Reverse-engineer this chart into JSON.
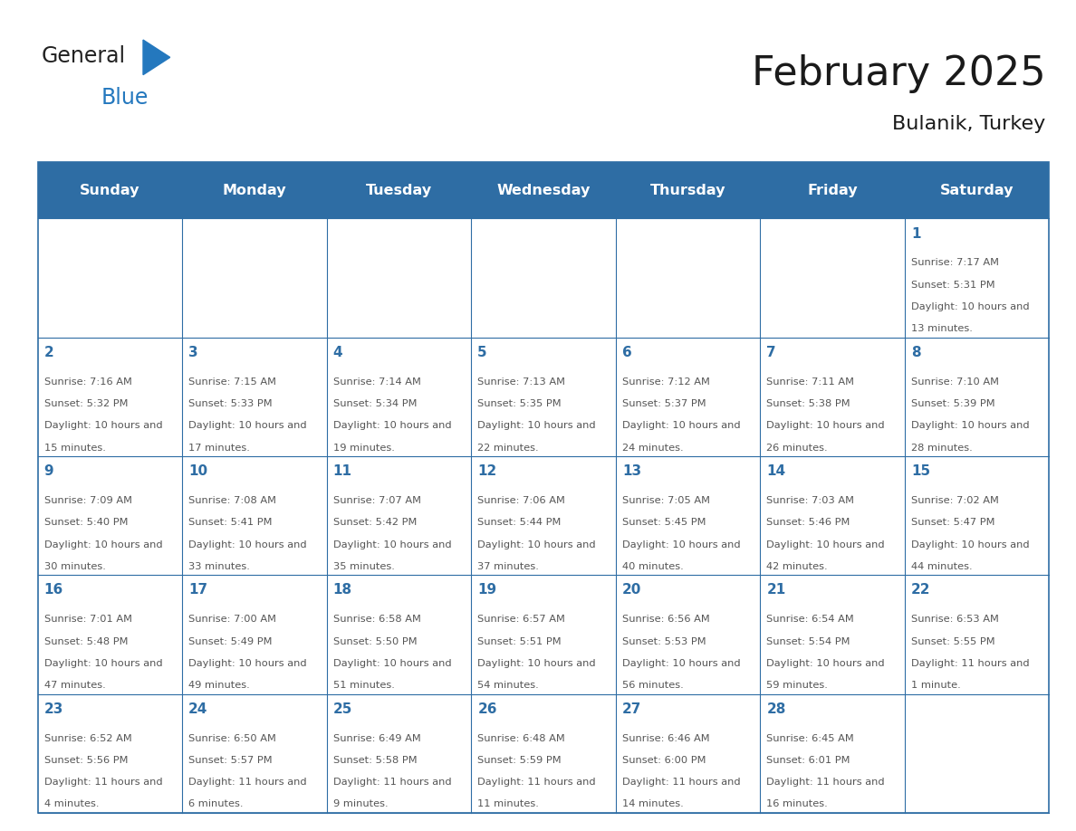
{
  "title": "February 2025",
  "subtitle": "Bulanik, Turkey",
  "days_of_week": [
    "Sunday",
    "Monday",
    "Tuesday",
    "Wednesday",
    "Thursday",
    "Friday",
    "Saturday"
  ],
  "header_bg": "#2E6DA4",
  "header_text_color": "#FFFFFF",
  "cell_bg": "#FFFFFF",
  "border_color": "#2E6DA4",
  "day_number_color": "#2E6DA4",
  "text_color": "#555555",
  "title_color": "#1a1a1a",
  "logo_blue_color": "#2478BE",
  "calendar_data": [
    {
      "day": 1,
      "col": 6,
      "row": 0,
      "sunrise": "7:17 AM",
      "sunset": "5:31 PM",
      "daylight_h": "10 hours",
      "daylight_m": "13 minutes."
    },
    {
      "day": 2,
      "col": 0,
      "row": 1,
      "sunrise": "7:16 AM",
      "sunset": "5:32 PM",
      "daylight_h": "10 hours",
      "daylight_m": "15 minutes."
    },
    {
      "day": 3,
      "col": 1,
      "row": 1,
      "sunrise": "7:15 AM",
      "sunset": "5:33 PM",
      "daylight_h": "10 hours",
      "daylight_m": "17 minutes."
    },
    {
      "day": 4,
      "col": 2,
      "row": 1,
      "sunrise": "7:14 AM",
      "sunset": "5:34 PM",
      "daylight_h": "10 hours",
      "daylight_m": "19 minutes."
    },
    {
      "day": 5,
      "col": 3,
      "row": 1,
      "sunrise": "7:13 AM",
      "sunset": "5:35 PM",
      "daylight_h": "10 hours",
      "daylight_m": "22 minutes."
    },
    {
      "day": 6,
      "col": 4,
      "row": 1,
      "sunrise": "7:12 AM",
      "sunset": "5:37 PM",
      "daylight_h": "10 hours",
      "daylight_m": "24 minutes."
    },
    {
      "day": 7,
      "col": 5,
      "row": 1,
      "sunrise": "7:11 AM",
      "sunset": "5:38 PM",
      "daylight_h": "10 hours",
      "daylight_m": "26 minutes."
    },
    {
      "day": 8,
      "col": 6,
      "row": 1,
      "sunrise": "7:10 AM",
      "sunset": "5:39 PM",
      "daylight_h": "10 hours",
      "daylight_m": "28 minutes."
    },
    {
      "day": 9,
      "col": 0,
      "row": 2,
      "sunrise": "7:09 AM",
      "sunset": "5:40 PM",
      "daylight_h": "10 hours",
      "daylight_m": "30 minutes."
    },
    {
      "day": 10,
      "col": 1,
      "row": 2,
      "sunrise": "7:08 AM",
      "sunset": "5:41 PM",
      "daylight_h": "10 hours",
      "daylight_m": "33 minutes."
    },
    {
      "day": 11,
      "col": 2,
      "row": 2,
      "sunrise": "7:07 AM",
      "sunset": "5:42 PM",
      "daylight_h": "10 hours",
      "daylight_m": "35 minutes."
    },
    {
      "day": 12,
      "col": 3,
      "row": 2,
      "sunrise": "7:06 AM",
      "sunset": "5:44 PM",
      "daylight_h": "10 hours",
      "daylight_m": "37 minutes."
    },
    {
      "day": 13,
      "col": 4,
      "row": 2,
      "sunrise": "7:05 AM",
      "sunset": "5:45 PM",
      "daylight_h": "10 hours",
      "daylight_m": "40 minutes."
    },
    {
      "day": 14,
      "col": 5,
      "row": 2,
      "sunrise": "7:03 AM",
      "sunset": "5:46 PM",
      "daylight_h": "10 hours",
      "daylight_m": "42 minutes."
    },
    {
      "day": 15,
      "col": 6,
      "row": 2,
      "sunrise": "7:02 AM",
      "sunset": "5:47 PM",
      "daylight_h": "10 hours",
      "daylight_m": "44 minutes."
    },
    {
      "day": 16,
      "col": 0,
      "row": 3,
      "sunrise": "7:01 AM",
      "sunset": "5:48 PM",
      "daylight_h": "10 hours",
      "daylight_m": "47 minutes."
    },
    {
      "day": 17,
      "col": 1,
      "row": 3,
      "sunrise": "7:00 AM",
      "sunset": "5:49 PM",
      "daylight_h": "10 hours",
      "daylight_m": "49 minutes."
    },
    {
      "day": 18,
      "col": 2,
      "row": 3,
      "sunrise": "6:58 AM",
      "sunset": "5:50 PM",
      "daylight_h": "10 hours",
      "daylight_m": "51 minutes."
    },
    {
      "day": 19,
      "col": 3,
      "row": 3,
      "sunrise": "6:57 AM",
      "sunset": "5:51 PM",
      "daylight_h": "10 hours",
      "daylight_m": "54 minutes."
    },
    {
      "day": 20,
      "col": 4,
      "row": 3,
      "sunrise": "6:56 AM",
      "sunset": "5:53 PM",
      "daylight_h": "10 hours",
      "daylight_m": "56 minutes."
    },
    {
      "day": 21,
      "col": 5,
      "row": 3,
      "sunrise": "6:54 AM",
      "sunset": "5:54 PM",
      "daylight_h": "10 hours",
      "daylight_m": "59 minutes."
    },
    {
      "day": 22,
      "col": 6,
      "row": 3,
      "sunrise": "6:53 AM",
      "sunset": "5:55 PM",
      "daylight_h": "11 hours",
      "daylight_m": "1 minute."
    },
    {
      "day": 23,
      "col": 0,
      "row": 4,
      "sunrise": "6:52 AM",
      "sunset": "5:56 PM",
      "daylight_h": "11 hours",
      "daylight_m": "4 minutes."
    },
    {
      "day": 24,
      "col": 1,
      "row": 4,
      "sunrise": "6:50 AM",
      "sunset": "5:57 PM",
      "daylight_h": "11 hours",
      "daylight_m": "6 minutes."
    },
    {
      "day": 25,
      "col": 2,
      "row": 4,
      "sunrise": "6:49 AM",
      "sunset": "5:58 PM",
      "daylight_h": "11 hours",
      "daylight_m": "9 minutes."
    },
    {
      "day": 26,
      "col": 3,
      "row": 4,
      "sunrise": "6:48 AM",
      "sunset": "5:59 PM",
      "daylight_h": "11 hours",
      "daylight_m": "11 minutes."
    },
    {
      "day": 27,
      "col": 4,
      "row": 4,
      "sunrise": "6:46 AM",
      "sunset": "6:00 PM",
      "daylight_h": "11 hours",
      "daylight_m": "14 minutes."
    },
    {
      "day": 28,
      "col": 5,
      "row": 4,
      "sunrise": "6:45 AM",
      "sunset": "6:01 PM",
      "daylight_h": "11 hours",
      "daylight_m": "16 minutes."
    }
  ],
  "fig_width": 11.88,
  "fig_height": 9.18,
  "dpi": 100
}
